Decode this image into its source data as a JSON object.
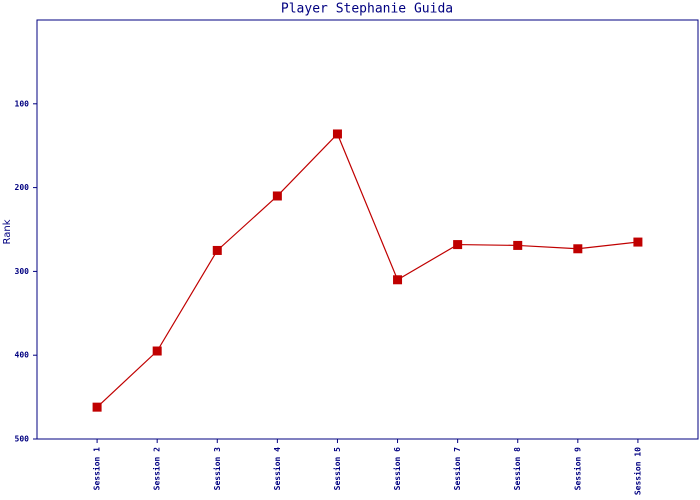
{
  "chart_data": {
    "type": "line",
    "title": "Player Stephanie Guida",
    "y_label": "Rank",
    "categories": [
      "Session 1",
      "Session 2",
      "Session 3",
      "Session 4",
      "Session 5",
      "Session 6",
      "Session 7",
      "Session 8",
      "Session 9",
      "Session 10"
    ],
    "series": [
      {
        "name": "Rank",
        "color": "#c00000",
        "values": [
          462,
          395,
          275,
          210,
          136,
          310,
          268,
          269,
          273,
          265
        ]
      }
    ],
    "ylim": [
      0,
      500
    ],
    "yticks": [
      100,
      200,
      300,
      400,
      500
    ],
    "y_inverted": true,
    "axis_color": "#000080"
  }
}
